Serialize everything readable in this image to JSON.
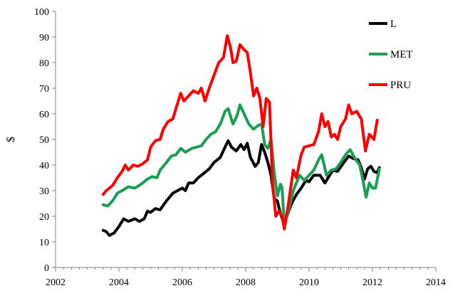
{
  "chart_data": {
    "type": "line",
    "title": "",
    "xlabel": "",
    "ylabel": "$",
    "xlim": [
      2002,
      2014
    ],
    "ylim": [
      0,
      100
    ],
    "x_ticks": [
      "2002",
      "2004",
      "2006",
      "2008",
      "2010",
      "2012",
      "2014"
    ],
    "y_ticks": [
      "0",
      "10",
      "20",
      "30",
      "40",
      "50",
      "60",
      "70",
      "80",
      "90",
      "100"
    ],
    "legend_position": "top-right",
    "grid": false,
    "series": [
      {
        "name": "L",
        "color": "#000000",
        "points": [
          [
            2003.5,
            14.5
          ],
          [
            2003.6,
            14.0
          ],
          [
            2003.7,
            12.5
          ],
          [
            2003.85,
            13.5
          ],
          [
            2004.0,
            16.0
          ],
          [
            2004.15,
            19.0
          ],
          [
            2004.3,
            18.0
          ],
          [
            2004.5,
            19.0
          ],
          [
            2004.65,
            18.0
          ],
          [
            2004.8,
            19.0
          ],
          [
            2004.9,
            22.0
          ],
          [
            2005.0,
            21.5
          ],
          [
            2005.15,
            23.0
          ],
          [
            2005.3,
            22.5
          ],
          [
            2005.5,
            26.0
          ],
          [
            2005.7,
            29.0
          ],
          [
            2005.85,
            30.0
          ],
          [
            2006.0,
            31.0
          ],
          [
            2006.1,
            30.0
          ],
          [
            2006.2,
            33.0
          ],
          [
            2006.35,
            33.0
          ],
          [
            2006.5,
            35.0
          ],
          [
            2006.7,
            37.0
          ],
          [
            2006.85,
            38.5
          ],
          [
            2007.0,
            41.0
          ],
          [
            2007.2,
            43.0
          ],
          [
            2007.35,
            47.0
          ],
          [
            2007.45,
            49.5
          ],
          [
            2007.55,
            47.0
          ],
          [
            2007.7,
            45.5
          ],
          [
            2007.85,
            48.0
          ],
          [
            2007.95,
            46.0
          ],
          [
            2008.05,
            48.5
          ],
          [
            2008.15,
            43.0
          ],
          [
            2008.3,
            39.5
          ],
          [
            2008.4,
            41.0
          ],
          [
            2008.5,
            48.0
          ],
          [
            2008.6,
            45.0
          ],
          [
            2008.7,
            41.0
          ],
          [
            2008.8,
            36.0
          ],
          [
            2008.9,
            27.0
          ],
          [
            2009.0,
            26.0
          ],
          [
            2009.1,
            21.0
          ],
          [
            2009.2,
            17.5
          ],
          [
            2009.3,
            20.0
          ],
          [
            2009.45,
            25.0
          ],
          [
            2009.6,
            28.5
          ],
          [
            2009.75,
            31.0
          ],
          [
            2009.9,
            34.0
          ],
          [
            2010.0,
            33.5
          ],
          [
            2010.15,
            36.0
          ],
          [
            2010.35,
            36.0
          ],
          [
            2010.5,
            33.0
          ],
          [
            2010.6,
            35.0
          ],
          [
            2010.75,
            38.0
          ],
          [
            2010.9,
            37.5
          ],
          [
            2011.1,
            41.0
          ],
          [
            2011.25,
            43.5
          ],
          [
            2011.4,
            42.5
          ],
          [
            2011.55,
            42.0
          ],
          [
            2011.65,
            39.0
          ],
          [
            2011.75,
            34.5
          ],
          [
            2011.85,
            38.5
          ],
          [
            2011.95,
            39.5
          ],
          [
            2012.05,
            37.5
          ],
          [
            2012.15,
            37.0
          ],
          [
            2012.22,
            39.0
          ]
        ]
      },
      {
        "name": "MET",
        "color": "#1a9e54",
        "points": [
          [
            2003.5,
            24.5
          ],
          [
            2003.65,
            24.0
          ],
          [
            2003.8,
            26.0
          ],
          [
            2003.95,
            29.0
          ],
          [
            2004.1,
            30.0
          ],
          [
            2004.3,
            31.5
          ],
          [
            2004.5,
            31.0
          ],
          [
            2004.7,
            32.5
          ],
          [
            2004.9,
            34.5
          ],
          [
            2005.05,
            35.5
          ],
          [
            2005.2,
            35.0
          ],
          [
            2005.3,
            38.0
          ],
          [
            2005.5,
            41.0
          ],
          [
            2005.65,
            43.5
          ],
          [
            2005.8,
            44.0
          ],
          [
            2005.95,
            46.5
          ],
          [
            2006.1,
            45.0
          ],
          [
            2006.3,
            46.5
          ],
          [
            2006.45,
            47.0
          ],
          [
            2006.6,
            47.5
          ],
          [
            2006.75,
            50.0
          ],
          [
            2006.9,
            52.0
          ],
          [
            2007.05,
            53.0
          ],
          [
            2007.2,
            56.0
          ],
          [
            2007.35,
            61.0
          ],
          [
            2007.45,
            62.0
          ],
          [
            2007.6,
            56.0
          ],
          [
            2007.72,
            59.0
          ],
          [
            2007.82,
            63.5
          ],
          [
            2007.95,
            60.0
          ],
          [
            2008.1,
            56.0
          ],
          [
            2008.25,
            54.0
          ],
          [
            2008.4,
            55.5
          ],
          [
            2008.5,
            56.0
          ],
          [
            2008.6,
            48.0
          ],
          [
            2008.7,
            46.5
          ],
          [
            2008.8,
            50.0
          ],
          [
            2008.9,
            37.0
          ],
          [
            2009.0,
            28.0
          ],
          [
            2009.1,
            32.5
          ],
          [
            2009.15,
            31.0
          ],
          [
            2009.22,
            16.5
          ],
          [
            2009.35,
            22.0
          ],
          [
            2009.5,
            30.0
          ],
          [
            2009.7,
            36.0
          ],
          [
            2009.85,
            34.0
          ],
          [
            2010.0,
            36.0
          ],
          [
            2010.15,
            38.0
          ],
          [
            2010.3,
            42.0
          ],
          [
            2010.4,
            44.0
          ],
          [
            2010.55,
            36.0
          ],
          [
            2010.7,
            38.0
          ],
          [
            2010.85,
            38.5
          ],
          [
            2011.0,
            41.0
          ],
          [
            2011.15,
            44.0
          ],
          [
            2011.3,
            46.0
          ],
          [
            2011.45,
            42.5
          ],
          [
            2011.6,
            40.0
          ],
          [
            2011.7,
            34.0
          ],
          [
            2011.8,
            27.5
          ],
          [
            2011.9,
            33.0
          ],
          [
            2012.0,
            31.0
          ],
          [
            2012.1,
            31.0
          ],
          [
            2012.22,
            38.5
          ]
        ]
      },
      {
        "name": "PRU",
        "color": "#ff0000",
        "points": [
          [
            2003.5,
            28.5
          ],
          [
            2003.6,
            30.0
          ],
          [
            2003.8,
            32.0
          ],
          [
            2003.95,
            35.0
          ],
          [
            2004.1,
            37.5
          ],
          [
            2004.2,
            40.0
          ],
          [
            2004.3,
            38.0
          ],
          [
            2004.45,
            40.0
          ],
          [
            2004.6,
            39.5
          ],
          [
            2004.75,
            40.5
          ],
          [
            2004.9,
            42.0
          ],
          [
            2005.0,
            47.0
          ],
          [
            2005.15,
            49.5
          ],
          [
            2005.3,
            50.0
          ],
          [
            2005.4,
            54.0
          ],
          [
            2005.55,
            57.0
          ],
          [
            2005.7,
            58.0
          ],
          [
            2005.85,
            64.0
          ],
          [
            2005.95,
            68.0
          ],
          [
            2006.05,
            65.0
          ],
          [
            2006.2,
            67.0
          ],
          [
            2006.35,
            69.0
          ],
          [
            2006.5,
            68.0
          ],
          [
            2006.6,
            70.0
          ],
          [
            2006.72,
            65.0
          ],
          [
            2006.85,
            70.0
          ],
          [
            2007.0,
            75.0
          ],
          [
            2007.15,
            80.0
          ],
          [
            2007.3,
            82.0
          ],
          [
            2007.42,
            90.5
          ],
          [
            2007.52,
            86.0
          ],
          [
            2007.6,
            80.0
          ],
          [
            2007.7,
            80.5
          ],
          [
            2007.82,
            87.0
          ],
          [
            2007.95,
            85.0
          ],
          [
            2008.05,
            84.0
          ],
          [
            2008.15,
            76.0
          ],
          [
            2008.25,
            67.0
          ],
          [
            2008.35,
            70.0
          ],
          [
            2008.45,
            66.0
          ],
          [
            2008.55,
            55.0
          ],
          [
            2008.65,
            66.0
          ],
          [
            2008.75,
            64.5
          ],
          [
            2008.85,
            33.0
          ],
          [
            2008.95,
            20.0
          ],
          [
            2009.05,
            22.0
          ],
          [
            2009.15,
            20.0
          ],
          [
            2009.22,
            15.0
          ],
          [
            2009.35,
            25.0
          ],
          [
            2009.5,
            38.0
          ],
          [
            2009.6,
            35.0
          ],
          [
            2009.75,
            44.0
          ],
          [
            2009.85,
            47.0
          ],
          [
            2010.0,
            47.5
          ],
          [
            2010.15,
            48.0
          ],
          [
            2010.3,
            53.0
          ],
          [
            2010.4,
            60.0
          ],
          [
            2010.5,
            55.0
          ],
          [
            2010.6,
            57.0
          ],
          [
            2010.7,
            51.0
          ],
          [
            2010.8,
            52.0
          ],
          [
            2010.9,
            50.0
          ],
          [
            2011.0,
            55.0
          ],
          [
            2011.15,
            58.0
          ],
          [
            2011.25,
            63.5
          ],
          [
            2011.35,
            60.0
          ],
          [
            2011.5,
            61.0
          ],
          [
            2011.65,
            58.0
          ],
          [
            2011.78,
            45.5
          ],
          [
            2011.9,
            52.0
          ],
          [
            2012.05,
            50.0
          ],
          [
            2012.15,
            57.5
          ]
        ]
      }
    ]
  }
}
